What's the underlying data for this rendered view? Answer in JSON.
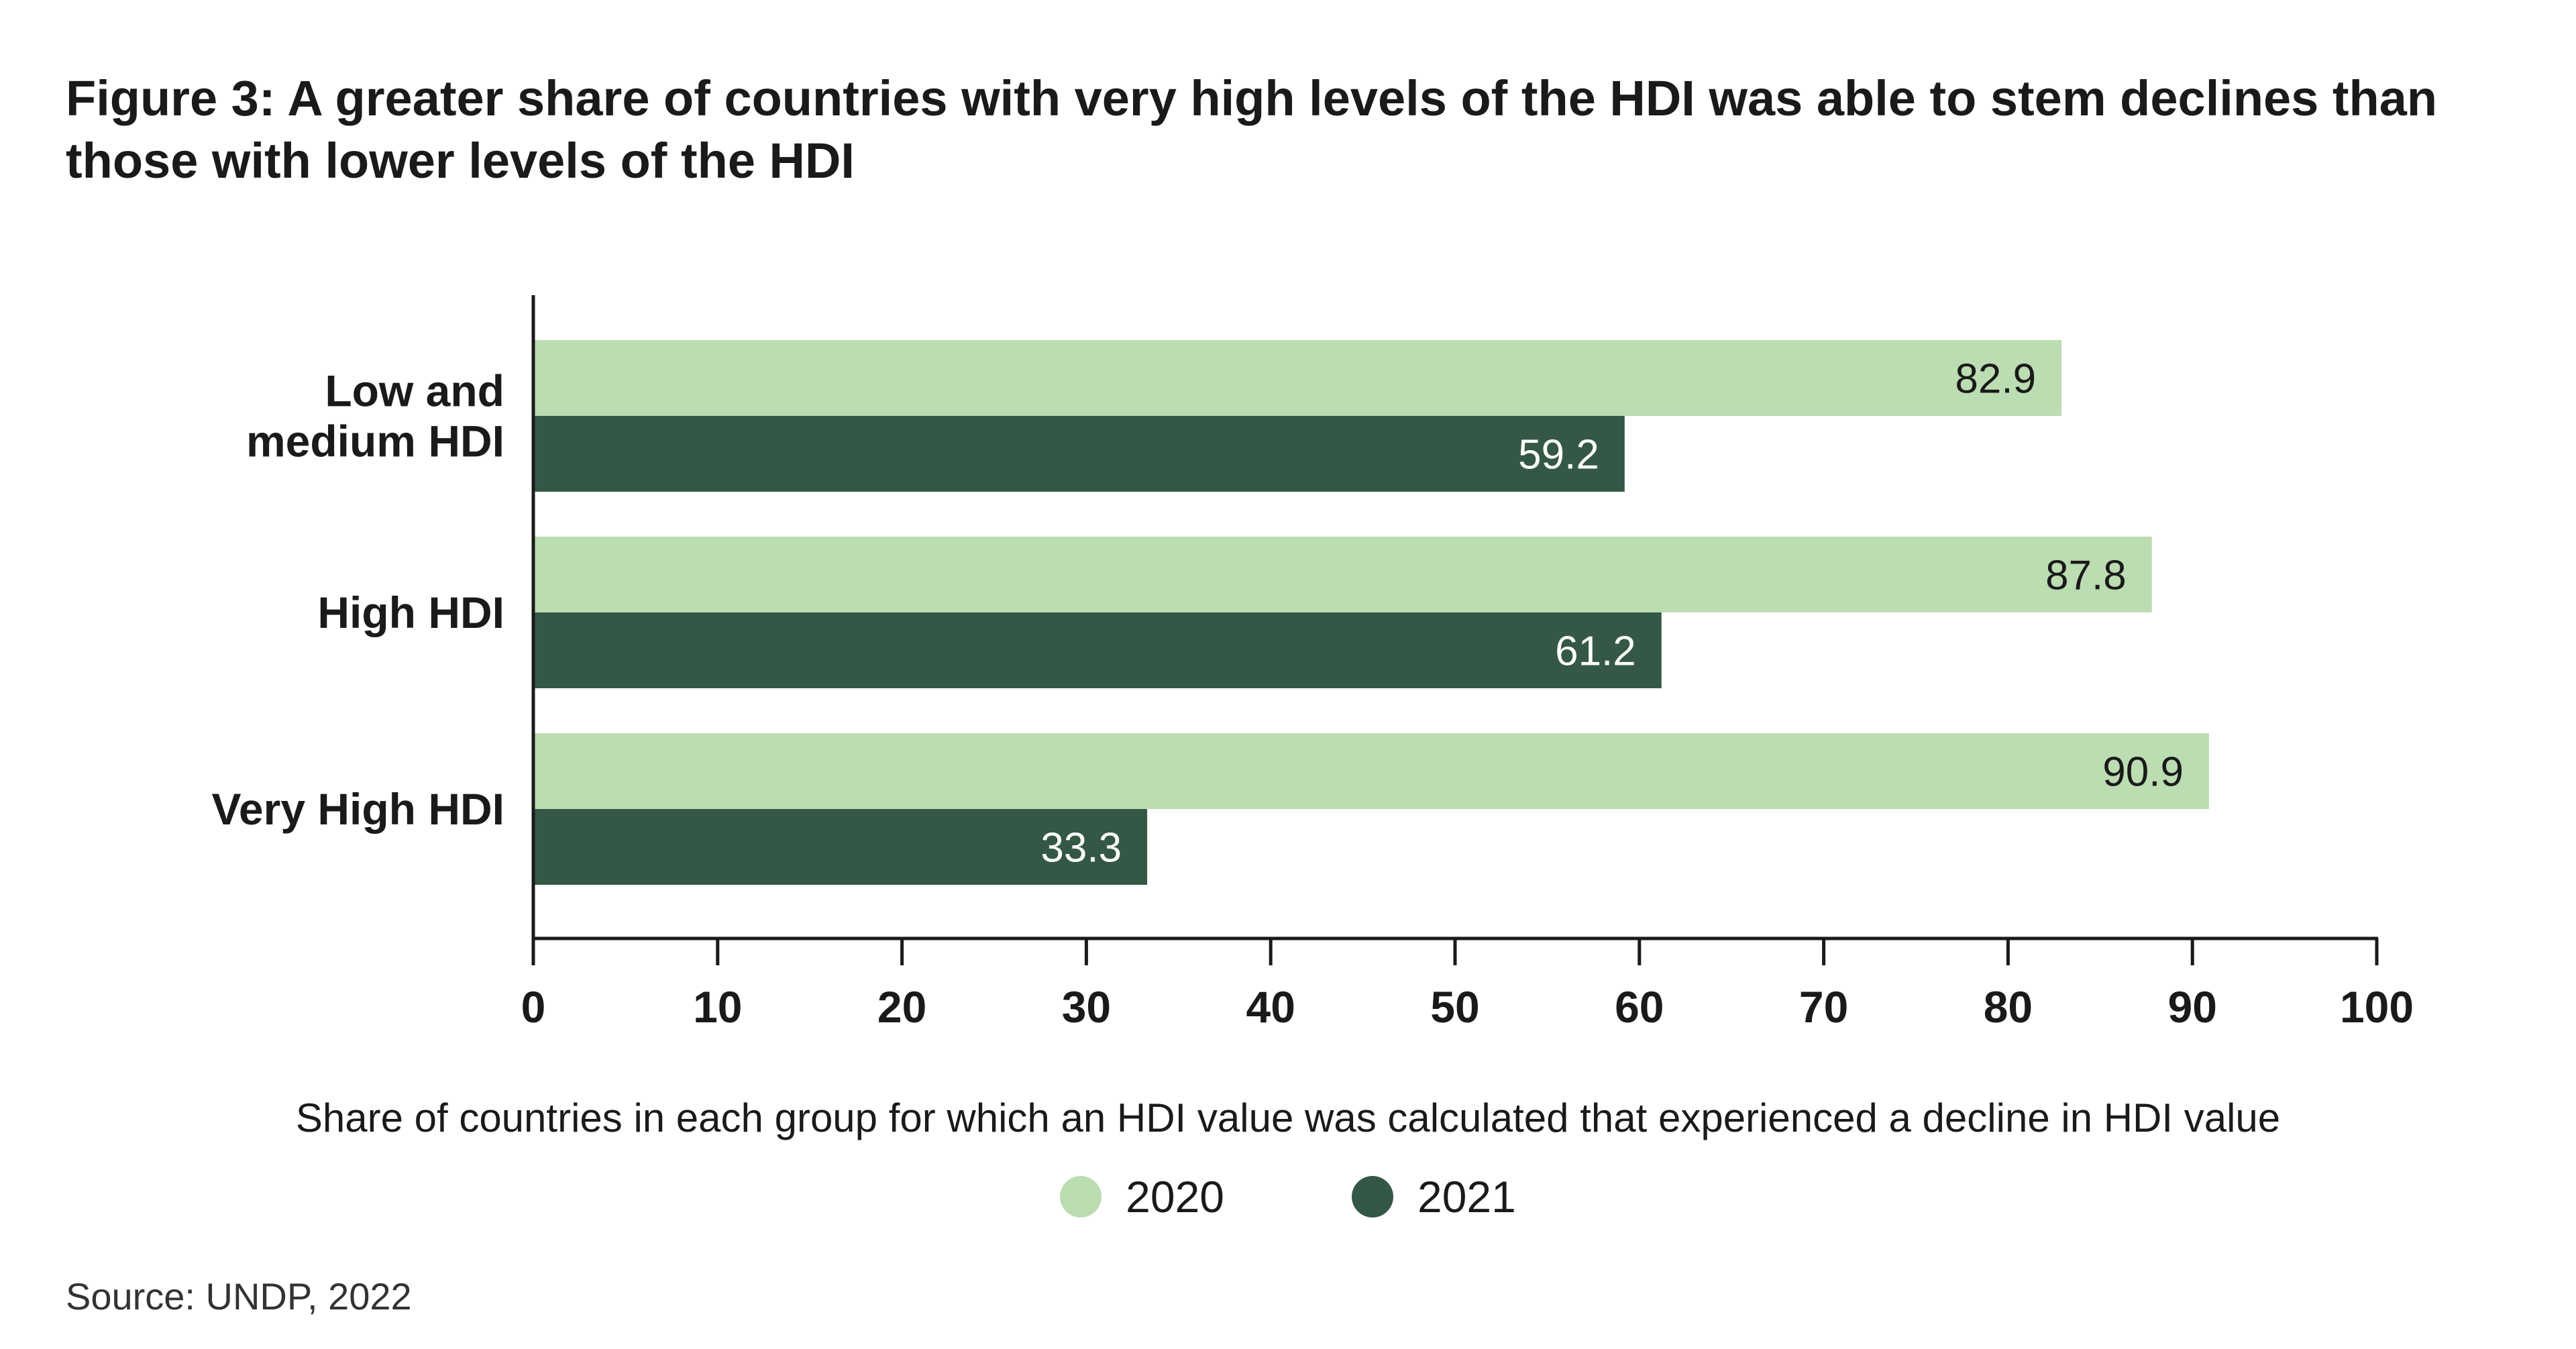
{
  "figure": {
    "title": "Figure 3: A greater share of countries with very high levels of the HDI was able to stem declines than those with lower levels of the HDI",
    "source": "Source: UNDP, 2022"
  },
  "chart_data": {
    "type": "bar",
    "orientation": "horizontal",
    "title": "Figure 3: A greater share of countries with very high levels of the HDI was able to stem declines than those with lower levels of the HDI",
    "categories": [
      [
        "Low and",
        "medium HDI"
      ],
      [
        "High HDI"
      ],
      [
        "Very High HDI"
      ]
    ],
    "series": [
      {
        "name": "2020",
        "values": [
          82.9,
          87.8,
          90.9
        ],
        "color": "#bcdcb2",
        "label_color": "#1a1a1a"
      },
      {
        "name": "2021",
        "values": [
          59.2,
          61.2,
          33.3
        ],
        "color": "#345845",
        "label_color": "#ffffff"
      }
    ],
    "xlabel": "Share of countries in each group for which an HDI value was calculated that experienced a decline in HDI value",
    "ylabel": "",
    "xlim": [
      0,
      100
    ],
    "xticks": [
      0,
      10,
      20,
      30,
      40,
      50,
      60,
      70,
      80,
      90,
      100
    ],
    "grid": false,
    "legend": {
      "position": "bottom-center"
    }
  }
}
